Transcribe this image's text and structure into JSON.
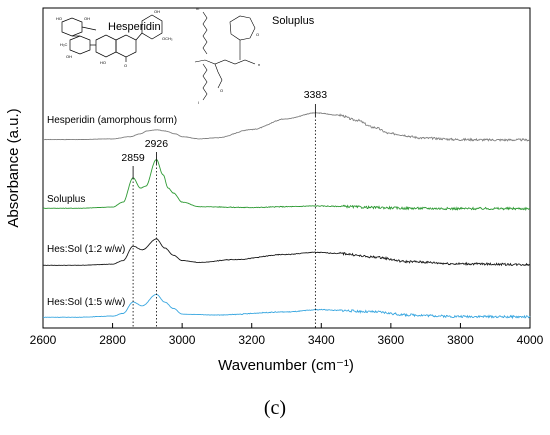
{
  "chart_data": {
    "type": "line",
    "xlabel": "Wavenumber (cm⁻¹)",
    "ylabel": "Absorbance (a.u.)",
    "xlim": [
      2600,
      4000
    ],
    "x_ticks": [
      "2600",
      "2800",
      "3000",
      "3200",
      "3400",
      "3600",
      "3800",
      "4000"
    ],
    "grid": false,
    "legend": "inline labels above each trace",
    "series": [
      {
        "name": "Hesperidin (amorphous form)",
        "color": "#808080",
        "x": [
          2600,
          2700,
          2800,
          2850,
          2880,
          2900,
          2926,
          2950,
          2980,
          3000,
          3050,
          3100,
          3200,
          3300,
          3383,
          3450,
          3500,
          3550,
          3600,
          3700,
          3800,
          3900,
          4000
        ],
        "y": [
          0.04,
          0.04,
          0.06,
          0.12,
          0.2,
          0.28,
          0.31,
          0.28,
          0.2,
          0.12,
          0.06,
          0.09,
          0.32,
          0.62,
          0.78,
          0.72,
          0.58,
          0.38,
          0.2,
          0.08,
          0.04,
          0.03,
          0.03
        ]
      },
      {
        "name": "Soluplus",
        "color": "#2e9a34",
        "x": [
          2600,
          2700,
          2800,
          2830,
          2859,
          2880,
          2895,
          2926,
          2945,
          2960,
          2975,
          3000,
          3050,
          3200,
          3300,
          3383,
          3450,
          3550,
          3650,
          3800,
          4000
        ],
        "y": [
          0.02,
          0.02,
          0.05,
          0.18,
          0.82,
          0.55,
          0.6,
          1.3,
          0.9,
          0.55,
          0.42,
          0.18,
          0.06,
          0.04,
          0.06,
          0.08,
          0.07,
          0.04,
          0.02,
          0.01,
          0.01
        ]
      },
      {
        "name": "Hes:Sol (1:2 w/w)",
        "color": "#1a1a1a",
        "x": [
          2600,
          2700,
          2800,
          2830,
          2859,
          2885,
          2926,
          2950,
          2975,
          3000,
          3050,
          3150,
          3300,
          3383,
          3450,
          3550,
          3650,
          3800,
          4000
        ],
        "y": [
          0.02,
          0.02,
          0.05,
          0.15,
          0.55,
          0.45,
          0.75,
          0.5,
          0.3,
          0.15,
          0.1,
          0.18,
          0.32,
          0.38,
          0.35,
          0.25,
          0.12,
          0.06,
          0.04
        ]
      },
      {
        "name": "Hes:Sol (1:5 w/w)",
        "color": "#3aa7e0",
        "x": [
          2600,
          2700,
          2800,
          2830,
          2859,
          2885,
          2926,
          2950,
          2975,
          3000,
          3100,
          3300,
          3400,
          3450,
          3550,
          3650,
          3800,
          4000
        ],
        "y": [
          0.02,
          0.02,
          0.05,
          0.12,
          0.42,
          0.32,
          0.62,
          0.42,
          0.25,
          0.1,
          0.08,
          0.16,
          0.22,
          0.2,
          0.16,
          0.08,
          0.04,
          0.03
        ]
      }
    ],
    "annotations": [
      {
        "text": "3383",
        "x": 3383
      },
      {
        "text": "2859",
        "x": 2859
      },
      {
        "text": "2926",
        "x": 2926
      }
    ],
    "structures": [
      "Hesperidin",
      "Soluplus"
    ],
    "panel_label": "(c)"
  },
  "atoms": {
    "ho": "HO",
    "oh": "OH",
    "och3": "OCH₃",
    "h3c": "H₃C",
    "o": "O",
    "m": "m",
    "n": "n",
    "l": "l"
  }
}
